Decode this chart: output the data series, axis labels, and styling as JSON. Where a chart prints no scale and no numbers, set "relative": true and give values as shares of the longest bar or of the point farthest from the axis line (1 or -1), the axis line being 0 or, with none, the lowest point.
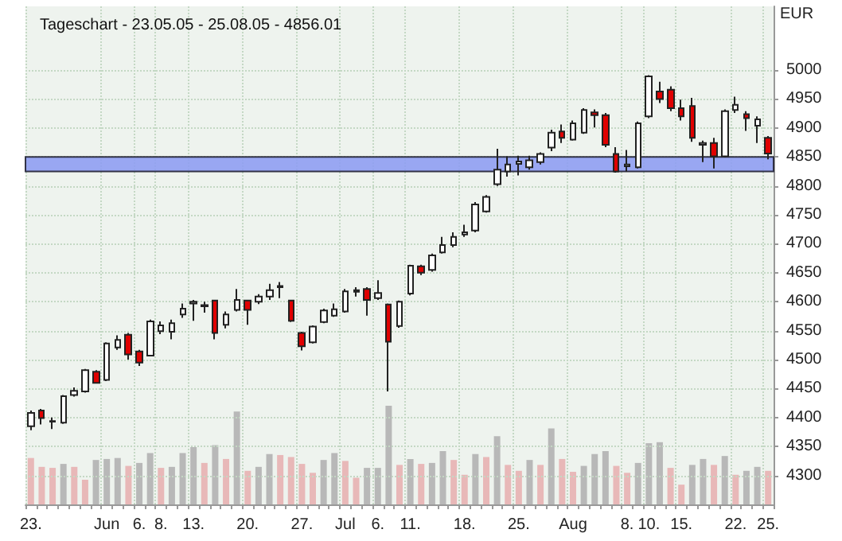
{
  "chart_data": [
    {
      "type": "candlestick",
      "title": "Tageschart - 23.05.05 - 25.08.05 - 4856.01",
      "ylabel": "EUR",
      "categories": [
        "23.",
        null,
        null,
        null,
        null,
        null,
        null,
        "Jun",
        null,
        null,
        "6.",
        null,
        "8.",
        null,
        null,
        "13.",
        null,
        null,
        null,
        null,
        "20.",
        null,
        null,
        null,
        null,
        "27.",
        null,
        null,
        null,
        "Jul",
        null,
        null,
        "6.",
        null,
        null,
        "11.",
        null,
        null,
        null,
        null,
        "18.",
        null,
        null,
        null,
        null,
        "25.",
        null,
        null,
        null,
        null,
        "Aug",
        null,
        null,
        null,
        null,
        "8.",
        null,
        "10.",
        null,
        null,
        "15.",
        null,
        null,
        null,
        null,
        "22.",
        null,
        null,
        "25."
      ],
      "ohlc": [
        [
          4385,
          4412,
          4378,
          4408
        ],
        [
          4412,
          4415,
          4388,
          4399
        ],
        [
          4393,
          4400,
          4380,
          4394
        ],
        [
          4391,
          4439,
          4389,
          4437
        ],
        [
          4439,
          4452,
          4436,
          4446
        ],
        [
          4445,
          4484,
          4443,
          4482
        ],
        [
          4479,
          4482,
          4459,
          4460
        ],
        [
          4465,
          4530,
          4463,
          4528
        ],
        [
          4521,
          4542,
          4517,
          4534
        ],
        [
          4543,
          4546,
          4500,
          4509
        ],
        [
          4514,
          4517,
          4489,
          4495
        ],
        [
          4507,
          4569,
          4506,
          4566
        ],
        [
          4549,
          4566,
          4544,
          4559
        ],
        [
          4548,
          4569,
          4535,
          4563
        ],
        [
          4578,
          4597,
          4572,
          4588
        ],
        [
          4597,
          4603,
          4567,
          4600
        ],
        [
          4592,
          4600,
          4581,
          4594
        ],
        [
          4602,
          4603,
          4535,
          4546
        ],
        [
          4560,
          4583,
          4554,
          4578
        ],
        [
          4586,
          4622,
          4583,
          4603
        ],
        [
          4602,
          4603,
          4560,
          4586
        ],
        [
          4600,
          4613,
          4596,
          4609
        ],
        [
          4609,
          4631,
          4603,
          4620
        ],
        [
          4627,
          4634,
          4606,
          4625
        ],
        [
          4602,
          4603,
          4565,
          4567
        ],
        [
          4546,
          4548,
          4516,
          4523
        ],
        [
          4530,
          4559,
          4528,
          4557
        ],
        [
          4565,
          4588,
          4563,
          4585
        ],
        [
          4576,
          4597,
          4574,
          4587
        ],
        [
          4583,
          4622,
          4581,
          4618
        ],
        [
          4620,
          4625,
          4609,
          4617
        ],
        [
          4622,
          4625,
          4576,
          4603
        ],
        [
          4606,
          4637,
          4603,
          4615
        ],
        [
          4595,
          4597,
          4445,
          4531
        ],
        [
          4558,
          4602,
          4555,
          4600
        ],
        [
          4614,
          4664,
          4611,
          4662
        ],
        [
          4661,
          4664,
          4646,
          4650
        ],
        [
          4655,
          4683,
          4652,
          4680
        ],
        [
          4685,
          4712,
          4683,
          4698
        ],
        [
          4698,
          4720,
          4694,
          4712
        ],
        [
          4716,
          4733,
          4712,
          4720
        ],
        [
          4723,
          4772,
          4720,
          4768
        ],
        [
          4756,
          4784,
          4754,
          4781
        ],
        [
          4803,
          4864,
          4800,
          4828
        ],
        [
          4825,
          4851,
          4816,
          4837
        ],
        [
          4838,
          4852,
          4818,
          4842
        ],
        [
          4832,
          4852,
          4828,
          4844
        ],
        [
          4841,
          4858,
          4837,
          4855
        ],
        [
          4866,
          4897,
          4860,
          4892
        ],
        [
          4894,
          4906,
          4874,
          4883
        ],
        [
          4880,
          4913,
          4878,
          4908
        ],
        [
          4892,
          4934,
          4890,
          4931
        ],
        [
          4927,
          4932,
          4901,
          4922
        ],
        [
          4922,
          4926,
          4867,
          4871
        ],
        [
          4855,
          4867,
          4823,
          4825
        ],
        [
          4834,
          4862,
          4825,
          4837
        ],
        [
          4832,
          4911,
          4830,
          4908
        ],
        [
          4920,
          4991,
          4917,
          4989
        ],
        [
          4963,
          4980,
          4943,
          4950
        ],
        [
          4966,
          4972,
          4929,
          4934
        ],
        [
          4934,
          4949,
          4913,
          4920
        ],
        [
          4938,
          4952,
          4876,
          4883
        ],
        [
          4871,
          4878,
          4841,
          4874
        ],
        [
          4874,
          4883,
          4830,
          4851
        ],
        [
          4851,
          4932,
          4849,
          4929
        ],
        [
          4931,
          4954,
          4926,
          4940
        ],
        [
          4924,
          4929,
          4895,
          4917
        ],
        [
          4904,
          4920,
          4874,
          4915
        ],
        [
          4883,
          4886,
          4846,
          4856
        ]
      ],
      "colors": [
        "#ffffff",
        "#e00000",
        "#ffffff",
        "#ffffff",
        "#ffffff",
        "#ffffff",
        "#e00000",
        "#ffffff",
        "#ffffff",
        "#e00000",
        "#e00000",
        "#ffffff",
        "#ffffff",
        "#ffffff",
        "#ffffff",
        "#ffffff",
        "#ffffff",
        "#e00000",
        "#ffffff",
        "#ffffff",
        "#e00000",
        "#ffffff",
        "#ffffff",
        "#ffffff",
        "#e00000",
        "#e00000",
        "#ffffff",
        "#ffffff",
        "#ffffff",
        "#ffffff",
        "#ffffff",
        "#e00000",
        "#ffffff",
        "#e00000",
        "#ffffff",
        "#ffffff",
        "#e00000",
        "#ffffff",
        "#ffffff",
        "#ffffff",
        "#ffffff",
        "#ffffff",
        "#ffffff",
        "#ffffff",
        "#ffffff",
        "#ffffff",
        "#ffffff",
        "#ffffff",
        "#ffffff",
        "#e00000",
        "#ffffff",
        "#ffffff",
        "#e00000",
        "#e00000",
        "#e00000",
        "#ffffff",
        "#ffffff",
        "#ffffff",
        "#e00000",
        "#e00000",
        "#e00000",
        "#e00000",
        "#ffffff",
        "#e00000",
        "#ffffff",
        "#ffffff",
        "#e00000",
        "#ffffff",
        "#e00000"
      ],
      "ylim": [
        4250,
        5110
      ],
      "yticks": [
        4300,
        4350,
        4400,
        4450,
        4500,
        4550,
        4600,
        4650,
        4700,
        4750,
        4800,
        4850,
        4900,
        4950,
        5000
      ],
      "bands": [
        {
          "axis": "y",
          "from": 4825,
          "to": 4850,
          "color": "#8f9ff2"
        }
      ],
      "grid": true
    },
    {
      "type": "bar",
      "relative": true,
      "tick_labels": false,
      "categories": [
        null,
        null,
        null,
        null,
        null,
        null,
        null,
        null,
        null,
        null,
        null,
        null,
        null,
        null,
        null,
        null,
        null,
        null,
        null,
        null,
        null,
        null,
        null,
        null,
        null,
        null,
        null,
        null,
        null,
        null,
        null,
        null,
        null,
        null,
        null,
        null,
        null,
        null,
        null,
        null,
        null,
        null,
        null,
        null,
        null,
        null,
        null,
        null,
        null,
        null,
        null,
        null,
        null,
        null,
        null,
        null,
        null,
        null,
        null,
        null,
        null,
        null,
        null,
        null,
        null,
        null,
        null,
        null,
        null
      ],
      "values": [
        0.47,
        0.38,
        0.37,
        0.41,
        0.38,
        0.25,
        0.45,
        0.46,
        0.47,
        0.39,
        0.42,
        0.52,
        0.37,
        0.38,
        0.52,
        0.58,
        0.42,
        0.6,
        0.46,
        0.94,
        0.34,
        0.38,
        0.51,
        0.5,
        0.48,
        0.41,
        0.32,
        0.45,
        0.52,
        0.44,
        0.27,
        0.37,
        0.37,
        1,
        0.4,
        0.46,
        0.41,
        0.42,
        0.54,
        0.45,
        0.3,
        0.51,
        0.48,
        0.69,
        0.4,
        0.34,
        0.45,
        0.4,
        0.77,
        0.46,
        0.33,
        0.39,
        0.51,
        0.54,
        0.39,
        0.32,
        0.42,
        0.62,
        0.63,
        0.37,
        0.2,
        0.4,
        0.46,
        0.4,
        0.49,
        0.3,
        0.34,
        0.38,
        0.34
      ],
      "colors": [
        "#e8b8b8",
        "#e8b8b8",
        "#e8b8b8",
        "#b8b8b8",
        "#e8b8b8",
        "#e8b8b8",
        "#b8b8b8",
        "#b8b8b8",
        "#b8b8b8",
        "#e8b8b8",
        "#b8b8b8",
        "#b8b8b8",
        "#e8b8b8",
        "#b8b8b8",
        "#b8b8b8",
        "#b8b8b8",
        "#e8b8b8",
        "#b8b8b8",
        "#e8b8b8",
        "#b8b8b8",
        "#e8b8b8",
        "#b8b8b8",
        "#b8b8b8",
        "#e8b8b8",
        "#e8b8b8",
        "#e8b8b8",
        "#e8b8b8",
        "#b8b8b8",
        "#b8b8b8",
        "#e8b8b8",
        "#e8b8b8",
        "#b8b8b8",
        "#b8b8b8",
        "#b8b8b8",
        "#e8b8b8",
        "#b8b8b8",
        "#e8b8b8",
        "#b8b8b8",
        "#b8b8b8",
        "#e8b8b8",
        "#e8b8b8",
        "#b8b8b8",
        "#e8b8b8",
        "#b8b8b8",
        "#e8b8b8",
        "#e8b8b8",
        "#b8b8b8",
        "#e8b8b8",
        "#b8b8b8",
        "#e8b8b8",
        "#e8b8b8",
        "#b8b8b8",
        "#b8b8b8",
        "#b8b8b8",
        "#e8b8b8",
        "#e8b8b8",
        "#b8b8b8",
        "#b8b8b8",
        "#b8b8b8",
        "#e8b8b8",
        "#e8b8b8",
        "#b8b8b8",
        "#b8b8b8",
        "#e8b8b8",
        "#b8b8b8",
        "#e8b8b8",
        "#b8b8b8",
        "#b8b8b8",
        "#e8b8b8"
      ]
    }
  ]
}
